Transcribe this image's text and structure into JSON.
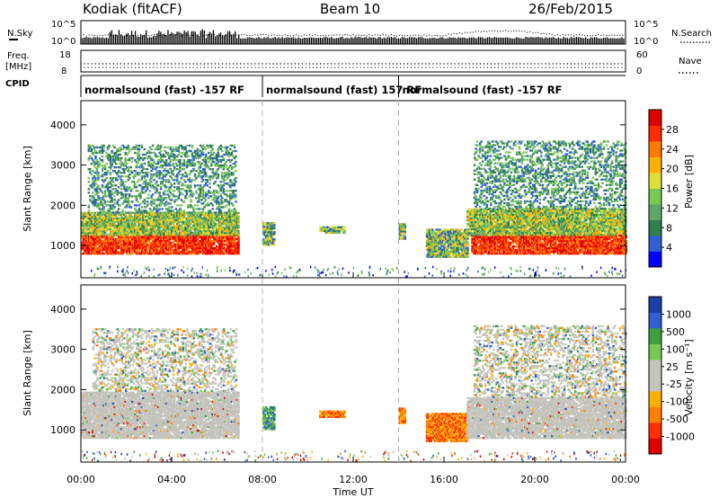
{
  "header": {
    "radar": "Kodiak (fitACF)",
    "beam": "Beam 10",
    "date": "26/Feb/2015"
  },
  "top_panels": {
    "nsky_label": "N.Sky",
    "nsearch_label": "N.Search",
    "nsky_ticks": [
      "10^5",
      "10^0"
    ],
    "nsearch_ticks": [
      "10^5",
      "10^0"
    ],
    "freq_label": "Freq.",
    "freq_unit": "[MHz]",
    "freq_ticks": [
      "18",
      "8"
    ],
    "nave_label": "Nave",
    "nave_ticks": [
      "60",
      "0"
    ],
    "cpid_label": "CPID",
    "cpid_modes": [
      {
        "text": "normalsound (fast) -157 RF",
        "start_hour": 0
      },
      {
        "text": "normalsound (fast) 157 RF",
        "start_hour": 8
      },
      {
        "text": "normalsound (fast) -157 RF",
        "start_hour": 14
      }
    ],
    "mode_change_hours": [
      8,
      14
    ]
  },
  "chart_data": [
    {
      "type": "heatmap",
      "name": "power",
      "xlabel": "",
      "ylabel": "Slant Range [km]",
      "xlim": [
        0,
        24
      ],
      "ylim": [
        200,
        4600
      ],
      "yticks": [
        "1000",
        "2000",
        "3000",
        "4000"
      ],
      "colorbar_label": "Power [dB]",
      "colorbar_ticks": [
        "28",
        "24",
        "20",
        "16",
        "12",
        "8",
        "4"
      ],
      "colorbar_colors": [
        "#0000ff",
        "#2f5fd0",
        "#2f7f4f",
        "#5fa86a",
        "#78c852",
        "#dede3a",
        "#ffb000",
        "#ff7a00",
        "#ff2a00",
        "#e00000"
      ],
      "features": [
        {
          "t0": 0.0,
          "t1": 6.9,
          "r0": 780,
          "r1": 1250,
          "level": "high"
        },
        {
          "t0": 0.0,
          "t1": 6.9,
          "r0": 1250,
          "r1": 1800,
          "level": "mid"
        },
        {
          "t0": 0.3,
          "t1": 6.8,
          "r0": 1800,
          "r1": 3500,
          "level": "low"
        },
        {
          "t0": 8.0,
          "t1": 8.5,
          "r0": 1000,
          "r1": 1550,
          "level": "patch"
        },
        {
          "t0": 10.5,
          "t1": 11.6,
          "r0": 1300,
          "r1": 1450,
          "level": "patch"
        },
        {
          "t0": 14.0,
          "t1": 14.3,
          "r0": 1150,
          "r1": 1550,
          "level": "patch"
        },
        {
          "t0": 15.2,
          "t1": 17.0,
          "r0": 700,
          "r1": 1400,
          "level": "patch"
        },
        {
          "t0": 17.2,
          "t1": 24.0,
          "r0": 780,
          "r1": 1250,
          "level": "high"
        },
        {
          "t0": 17.0,
          "t1": 24.0,
          "r0": 1250,
          "r1": 1900,
          "level": "mid"
        },
        {
          "t0": 17.3,
          "t1": 24.0,
          "r0": 1900,
          "r1": 3600,
          "level": "low"
        }
      ]
    },
    {
      "type": "heatmap",
      "name": "velocity",
      "xlabel": "Time UT",
      "ylabel": "Slant Range [km]",
      "xlim": [
        0,
        24
      ],
      "ylim": [
        200,
        4600
      ],
      "xticks": [
        "00:00",
        "04:00",
        "08:00",
        "12:00",
        "16:00",
        "20:00",
        "00:00"
      ],
      "yticks": [
        "1000",
        "2000",
        "3000",
        "4000"
      ],
      "colorbar_label": "Velocity [m s⁻¹]",
      "colorbar_ticks": [
        "1000",
        "500",
        "100",
        "25",
        "-25",
        "-100",
        "-500",
        "-1000"
      ],
      "colorbar_colors": [
        "#e00000",
        "#ff3000",
        "#ff8000",
        "#ffb000",
        "#c4c4bc",
        "#c4c4bc",
        "#78c852",
        "#3f9f3f",
        "#2f5fd0",
        "#1c3fa8"
      ],
      "features": [
        {
          "t0": 0.0,
          "t1": 6.9,
          "r0": 780,
          "r1": 1950,
          "level": "ground"
        },
        {
          "t0": 0.5,
          "t1": 6.8,
          "r0": 1950,
          "r1": 3500,
          "level": "sparse"
        },
        {
          "t0": 8.0,
          "t1": 8.5,
          "r0": 1000,
          "r1": 1550,
          "level": "green"
        },
        {
          "t0": 10.5,
          "t1": 11.6,
          "r0": 1300,
          "r1": 1450,
          "level": "orange"
        },
        {
          "t0": 14.0,
          "t1": 14.3,
          "r0": 1150,
          "r1": 1550,
          "level": "orange"
        },
        {
          "t0": 15.2,
          "t1": 17.0,
          "r0": 700,
          "r1": 1400,
          "level": "orange"
        },
        {
          "t0": 17.0,
          "t1": 24.0,
          "r0": 780,
          "r1": 1800,
          "level": "ground"
        },
        {
          "t0": 17.3,
          "t1": 24.0,
          "r0": 1800,
          "r1": 3600,
          "level": "sparse"
        }
      ]
    }
  ]
}
